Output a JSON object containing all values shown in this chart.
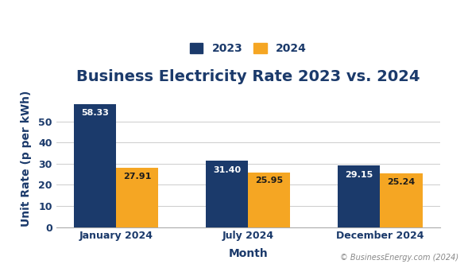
{
  "title": "Business Electricity Rate 2023 vs. 2024",
  "xlabel": "Month",
  "ylabel": "Unit Rate (p per kWh)",
  "categories": [
    "January 2024",
    "July 2024",
    "December 2024"
  ],
  "series": {
    "2023": [
      58.33,
      31.4,
      29.15
    ],
    "2024": [
      27.91,
      25.95,
      25.24
    ]
  },
  "bar_colors": {
    "2023": "#1b3a6b",
    "2024": "#f5a623"
  },
  "ylim": [
    0,
    65
  ],
  "yticks": [
    0,
    10,
    20,
    30,
    40,
    50
  ],
  "bar_width": 0.32,
  "title_fontsize": 14,
  "axis_label_fontsize": 10,
  "tick_fontsize": 9,
  "legend_fontsize": 10,
  "bar_label_fontsize": 8,
  "bg_color": "#ffffff",
  "grid_color": "#cccccc",
  "title_color": "#1b3a6b",
  "axis_label_color": "#1b3a6b",
  "tick_color": "#1b3a6b",
  "watermark": "© BusinessEnergy.com (2024)"
}
